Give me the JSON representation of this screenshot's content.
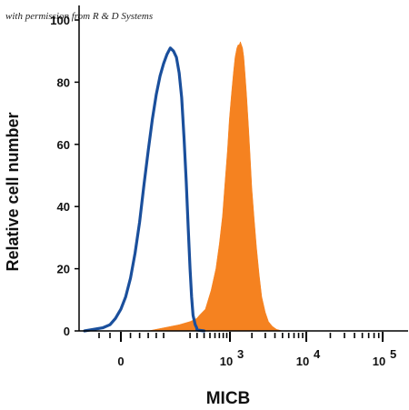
{
  "watermark": "with permission from R & D Systems",
  "chart_data": {
    "type": "area",
    "title": "",
    "xlabel": "MICB",
    "ylabel": "Relative cell number",
    "x_scale": "biexponential",
    "ylim": [
      0,
      100
    ],
    "y_ticks": [
      {
        "value": 0,
        "label": "0"
      },
      {
        "value": 20,
        "label": "20"
      },
      {
        "value": 40,
        "label": "40"
      },
      {
        "value": 60,
        "label": "60"
      },
      {
        "value": 80,
        "label": "80"
      },
      {
        "value": 100,
        "label": "100"
      }
    ],
    "x_ticks": [
      {
        "value": 0,
        "base": "0",
        "exp": ""
      },
      {
        "value": 1000,
        "base": "10",
        "exp": "3"
      },
      {
        "value": 10000,
        "base": "10",
        "exp": "4"
      },
      {
        "value": 100000,
        "base": "10",
        "exp": "5"
      }
    ],
    "grid": false,
    "legend": "none",
    "series": [
      {
        "style": "filled",
        "color": "#f58220",
        "x": [
          60,
          100,
          150,
          200,
          260,
          330,
          420,
          520,
          620,
          700,
          780,
          850,
          920,
          980,
          1050,
          1120,
          1180,
          1250,
          1300,
          1350,
          1400,
          1450,
          1500,
          1560,
          1620,
          1700,
          1800,
          1900,
          2000,
          2150,
          2300,
          2500,
          2700,
          3000,
          3300,
          3700,
          4200,
          5000
        ],
        "values": [
          0,
          1,
          2,
          3,
          4,
          5,
          7,
          13,
          20,
          28,
          37,
          48,
          58,
          68,
          76,
          83,
          88,
          91,
          92,
          92,
          93,
          92,
          91,
          88,
          83,
          76,
          66,
          56,
          46,
          36,
          27,
          18,
          11,
          6,
          3,
          1.5,
          0.5,
          0
        ]
      },
      {
        "style": "outline",
        "color": "#1a4f9c",
        "x": [
          -100,
          -50,
          -30,
          -15,
          0,
          10,
          20,
          30,
          40,
          50,
          60,
          70,
          80,
          90,
          100,
          110,
          120,
          130,
          140,
          150,
          160,
          170,
          180,
          190,
          200,
          210,
          220,
          240,
          260,
          300,
          400
        ],
        "values": [
          0,
          1,
          2,
          4,
          7,
          11,
          17,
          25,
          35,
          47,
          58,
          68,
          76,
          82,
          86,
          89,
          91,
          90,
          88,
          83,
          75,
          62,
          48,
          33,
          20,
          11,
          5,
          2,
          1,
          0.3,
          0
        ]
      }
    ]
  }
}
